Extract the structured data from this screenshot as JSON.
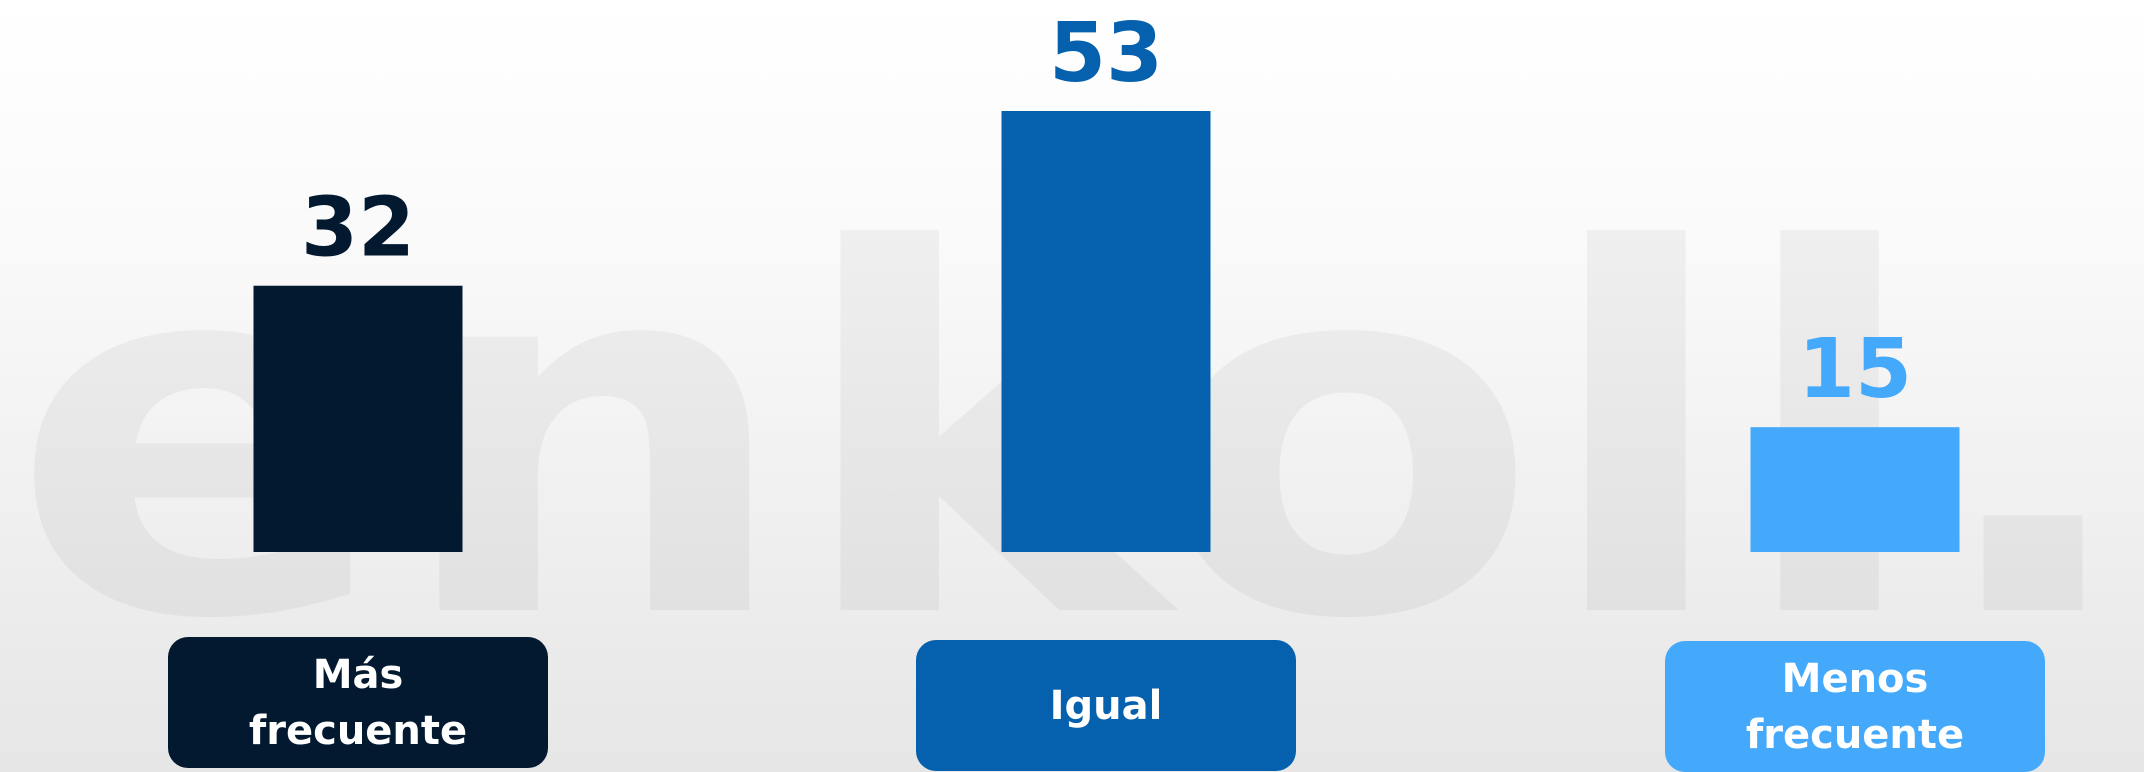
{
  "chart_data": {
    "type": "bar",
    "watermark": "enkoll.",
    "categories": [
      "Más frecuente",
      "Igual",
      "Menos frecuente"
    ],
    "values": [
      32,
      53,
      15
    ],
    "colors": [
      "#021930",
      "#0560ae",
      "#44a9fb"
    ],
    "ylim": [
      0,
      53
    ]
  }
}
